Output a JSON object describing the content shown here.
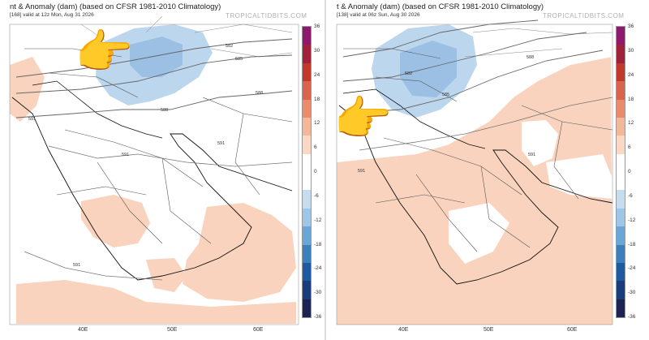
{
  "panels": [
    {
      "title": "nt & Anomaly (dam) (based on CFSR 1981-2010 Climatology)",
      "subtitle": "[168]   valid at 12z Mon, Aug 31 2026",
      "brand": "TROPICALTIDBITS.COM",
      "lon_labels": [
        "40E",
        "50E",
        "60E"
      ],
      "contour_labels": [
        "582",
        "585",
        "588",
        "588",
        "591",
        "591",
        "591",
        "591"
      ]
    },
    {
      "title": "t & Anomaly (dam) (based on CFSR 1981-2010 Climatology)",
      "subtitle": "[138]   valid at 06z Sun, Aug 30 2026",
      "brand": "TROPICALTIDBITS.COM",
      "lon_labels": [
        "40E",
        "50E",
        "60E"
      ],
      "contour_labels": [
        "582",
        "585",
        "588",
        "591",
        "591"
      ]
    }
  ],
  "colorbar": {
    "ticks": [
      "36",
      "30",
      "24",
      "18",
      "12",
      "6",
      "0",
      "-6",
      "-12",
      "-18",
      "-24",
      "-30",
      "-36"
    ],
    "colors": [
      "#8e1a6e",
      "#a0213a",
      "#c0392b",
      "#d9634c",
      "#ea8b6c",
      "#f4b79a",
      "#fbd8c4",
      "#ffffff",
      "#ffffff",
      "#c6dcef",
      "#9ec6e6",
      "#6aa6d6",
      "#3b7fbd",
      "#1f5aa0",
      "#173e7a",
      "#1b2452"
    ]
  },
  "colors": {
    "warm_anomaly": "#f9d3bd",
    "cool_anomaly": "#bcd6ee",
    "cool_anomaly_dark": "#9cc0e4"
  },
  "icons": [
    "pointing-hand-icon",
    "pointing-hand-icon"
  ]
}
